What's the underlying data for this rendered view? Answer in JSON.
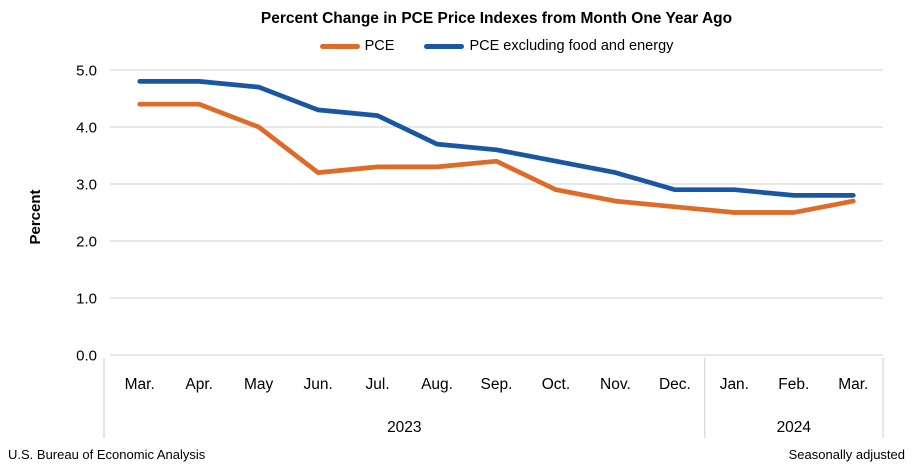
{
  "chart_data": {
    "type": "line",
    "title": "Percent Change in PCE Price Indexes from Month One Year Ago",
    "ylabel": "Percent",
    "ylim": [
      0.0,
      5.0
    ],
    "ytick_labels": [
      "5.0",
      "4.0",
      "3.0",
      "2.0",
      "1.0",
      "0.0"
    ],
    "grid": "horizontal",
    "legend_position": "top",
    "categories": [
      "Mar.",
      "Apr.",
      "May",
      "Jun.",
      "Jul.",
      "Aug.",
      "Sep.",
      "Oct.",
      "Nov.",
      "Dec.",
      "Jan.",
      "Feb.",
      "Mar."
    ],
    "year_groups": [
      {
        "label": "2023",
        "start_index": 0,
        "end_index": 9
      },
      {
        "label": "2024",
        "start_index": 10,
        "end_index": 12
      }
    ],
    "series": [
      {
        "name": "PCE",
        "color": "#DE6B28",
        "values": [
          4.4,
          4.4,
          4.0,
          3.2,
          3.3,
          3.3,
          3.4,
          2.9,
          2.7,
          2.6,
          2.5,
          2.5,
          2.7
        ]
      },
      {
        "name": "PCE excluding food and energy",
        "color": "#1A57A2",
        "values": [
          4.8,
          4.8,
          4.7,
          4.3,
          4.2,
          3.7,
          3.6,
          3.4,
          3.2,
          2.9,
          2.9,
          2.8,
          2.8
        ]
      }
    ],
    "colors": {
      "gridline": "#D9D9D9",
      "divider": "#D9D9D9",
      "text": "#000000"
    },
    "footer_left": "U.S. Bureau of Economic Analysis",
    "footer_right": "Seasonally adjusted"
  }
}
